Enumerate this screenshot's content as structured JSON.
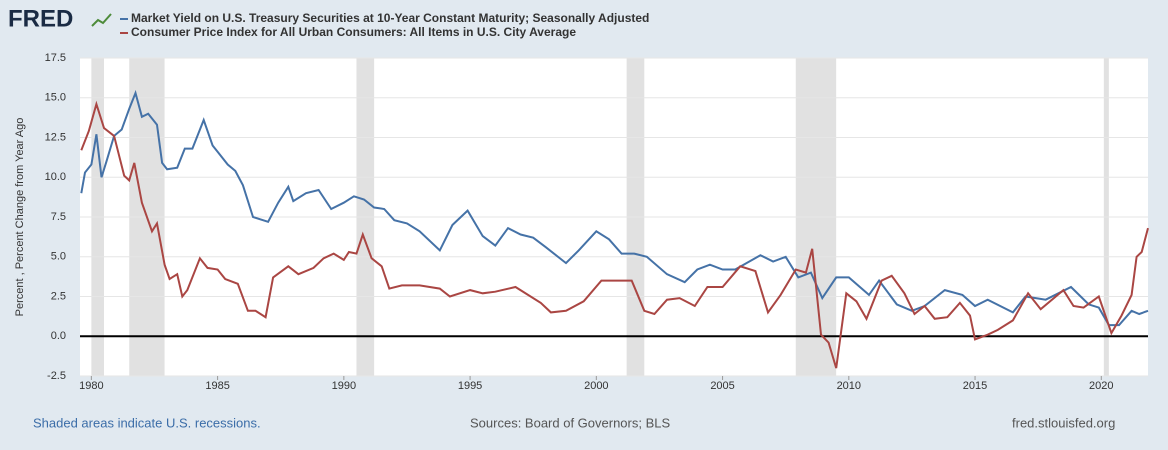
{
  "chart_data": {
    "type": "line",
    "logo": "FRED",
    "y_label": "Percent , Percent Change from Year Ago",
    "source_note": "Shaded areas indicate U.S. recessions.",
    "sources": "Sources: Board of Governors; BLS",
    "website": "fred.stlouisfed.org",
    "xlim": [
      1979.55,
      2021.85
    ],
    "xticks": [
      1980,
      1985,
      1990,
      1995,
      2000,
      2005,
      2010,
      2015,
      2020
    ],
    "ylim": [
      -2.5,
      17.5
    ],
    "yticks": [
      17.5,
      {
        "value": 15,
        "label": "15.0"
      },
      12.5,
      {
        "value": 10,
        "label": "10.0"
      },
      7.5,
      {
        "value": 5,
        "label": "5.0"
      },
      2.5,
      {
        "value": 0,
        "label": "0.0"
      },
      -2.5
    ],
    "grid": true,
    "recessions": [
      [
        1980.0,
        1980.5
      ],
      [
        1981.5,
        1982.9
      ],
      [
        1990.5,
        1991.2
      ],
      [
        2001.2,
        2001.9
      ],
      [
        2007.9,
        2009.5
      ],
      [
        2020.1,
        2020.3
      ]
    ],
    "series": [
      {
        "name": "Market Yield on U.S. Treasury Securities at 10-Year Constant Maturity; Seasonally Adjusted",
        "color": "#4572a7",
        "x": [
          1979.6,
          1979.75,
          1980.0,
          1980.2,
          1980.4,
          1980.6,
          1980.9,
          1981.2,
          1981.5,
          1981.75,
          1982.0,
          1982.25,
          1982.6,
          1982.8,
          1983.0,
          1983.4,
          1983.7,
          1984.0,
          1984.45,
          1984.8,
          1985.0,
          1985.4,
          1985.7,
          1986.0,
          1986.4,
          1986.8,
          1987.0,
          1987.4,
          1987.8,
          1988.0,
          1988.5,
          1989.0,
          1989.5,
          1990.0,
          1990.4,
          1990.8,
          1991.2,
          1991.6,
          1992.0,
          1992.5,
          1993.0,
          1993.8,
          1994.3,
          1994.9,
          1995.5,
          1996.0,
          1996.5,
          1997.0,
          1997.5,
          1998.0,
          1998.8,
          1999.3,
          2000.0,
          2000.5,
          2001.0,
          2001.5,
          2002.0,
          2002.8,
          2003.5,
          2004.0,
          2004.5,
          2005.0,
          2005.5,
          2006.5,
          2007.0,
          2007.5,
          2008.0,
          2008.5,
          2008.95,
          2009.5,
          2010.0,
          2010.8,
          2011.2,
          2011.9,
          2012.5,
          2013.0,
          2013.8,
          2014.5,
          2015.0,
          2015.5,
          2016.5,
          2017.0,
          2017.8,
          2018.8,
          2019.5,
          2019.9,
          2020.3,
          2020.7,
          2021.2,
          2021.5,
          2021.85
        ],
        "values": [
          9.0,
          10.3,
          10.8,
          12.7,
          10.0,
          11.0,
          12.6,
          13.0,
          14.3,
          15.3,
          13.8,
          14.0,
          13.3,
          10.9,
          10.5,
          10.6,
          11.8,
          11.8,
          13.6,
          12.0,
          11.6,
          10.8,
          10.4,
          9.5,
          7.5,
          7.3,
          7.2,
          8.4,
          9.4,
          8.5,
          9.0,
          9.2,
          8.0,
          8.4,
          8.8,
          8.6,
          8.1,
          8.0,
          7.3,
          7.1,
          6.6,
          5.4,
          7.0,
          7.9,
          6.3,
          5.7,
          6.8,
          6.4,
          6.2,
          5.6,
          4.6,
          5.4,
          6.6,
          6.1,
          5.2,
          5.2,
          5.0,
          3.9,
          3.4,
          4.2,
          4.5,
          4.2,
          4.2,
          5.1,
          4.7,
          5.0,
          3.7,
          4.0,
          2.4,
          3.7,
          3.7,
          2.6,
          3.5,
          2.0,
          1.6,
          1.9,
          2.9,
          2.6,
          1.9,
          2.3,
          1.5,
          2.5,
          2.3,
          3.1,
          2.0,
          1.8,
          0.7,
          0.7,
          1.6,
          1.4,
          1.6
        ]
      },
      {
        "name": "Consumer Price Index for All Urban Consumers: All Items in U.S. City Average",
        "color": "#aa4643",
        "x": [
          1979.6,
          1979.9,
          1980.2,
          1980.5,
          1980.9,
          1981.3,
          1981.5,
          1981.7,
          1982.0,
          1982.4,
          1982.6,
          1982.9,
          1983.1,
          1983.4,
          1983.6,
          1983.8,
          1984.3,
          1984.6,
          1985.0,
          1985.3,
          1985.8,
          1986.2,
          1986.5,
          1986.9,
          1987.2,
          1987.8,
          1988.2,
          1988.8,
          1989.2,
          1989.6,
          1990.0,
          1990.2,
          1990.5,
          1990.75,
          1991.1,
          1991.5,
          1991.8,
          1992.3,
          1993.0,
          1993.8,
          1994.2,
          1995.0,
          1995.5,
          1996.0,
          1996.8,
          1997.8,
          1998.2,
          1998.8,
          1999.5,
          2000.2,
          2000.5,
          2000.9,
          2001.4,
          2001.9,
          2002.3,
          2002.8,
          2003.3,
          2003.9,
          2004.4,
          2005.0,
          2005.7,
          2006.3,
          2006.8,
          2007.3,
          2007.9,
          2008.3,
          2008.55,
          2008.9,
          2009.2,
          2009.5,
          2009.9,
          2010.3,
          2010.7,
          2011.3,
          2011.7,
          2012.2,
          2012.6,
          2013.0,
          2013.4,
          2013.9,
          2014.4,
          2014.8,
          2015.0,
          2015.5,
          2015.9,
          2016.5,
          2017.1,
          2017.6,
          2018.5,
          2018.9,
          2019.3,
          2019.9,
          2020.4,
          2020.8,
          2021.2,
          2021.4,
          2021.6,
          2021.85
        ],
        "values": [
          11.7,
          12.9,
          14.6,
          13.1,
          12.6,
          10.1,
          9.8,
          10.9,
          8.4,
          6.6,
          7.1,
          4.5,
          3.6,
          3.9,
          2.5,
          2.9,
          4.9,
          4.3,
          4.2,
          3.6,
          3.3,
          1.6,
          1.6,
          1.2,
          3.7,
          4.4,
          3.9,
          4.3,
          4.9,
          5.2,
          4.8,
          5.3,
          5.2,
          6.4,
          4.9,
          4.4,
          3.0,
          3.2,
          3.2,
          3.0,
          2.5,
          2.9,
          2.7,
          2.8,
          3.1,
          2.1,
          1.5,
          1.6,
          2.2,
          3.5,
          3.5,
          3.5,
          3.5,
          1.6,
          1.4,
          2.3,
          2.4,
          1.9,
          3.1,
          3.1,
          4.4,
          4.1,
          1.5,
          2.6,
          4.2,
          4.0,
          5.5,
          0.1,
          -0.4,
          -2.0,
          2.7,
          2.2,
          1.1,
          3.5,
          3.8,
          2.7,
          1.4,
          1.9,
          1.1,
          1.2,
          2.1,
          1.3,
          -0.2,
          0.1,
          0.4,
          1.0,
          2.7,
          1.7,
          2.9,
          1.9,
          1.8,
          2.5,
          0.2,
          1.3,
          2.6,
          5.0,
          5.3,
          6.8
        ]
      }
    ]
  }
}
